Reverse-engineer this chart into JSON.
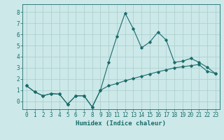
{
  "xlabel": "Humidex (Indice chaleur)",
  "background_color": "#cce8e8",
  "grid_color": "#aacccc",
  "line_color": "#1a6b6b",
  "xlim": [
    -0.5,
    23.5
  ],
  "ylim": [
    -0.7,
    8.7
  ],
  "xticks": [
    0,
    1,
    2,
    3,
    4,
    5,
    6,
    7,
    8,
    9,
    10,
    11,
    12,
    13,
    14,
    15,
    16,
    17,
    18,
    19,
    20,
    21,
    22,
    23
  ],
  "yticks": [
    0,
    1,
    2,
    3,
    4,
    5,
    6,
    7,
    8
  ],
  "line1_x": [
    0,
    1,
    2,
    3,
    4,
    5,
    6,
    7,
    8,
    9,
    10,
    11,
    12,
    13,
    14,
    15,
    16,
    17,
    18,
    19,
    20,
    21,
    22,
    23
  ],
  "line1_y": [
    1.4,
    0.85,
    0.5,
    0.7,
    0.65,
    -0.25,
    0.5,
    0.5,
    -0.5,
    1.0,
    3.5,
    5.8,
    7.9,
    6.5,
    4.8,
    5.3,
    6.2,
    5.5,
    3.5,
    3.6,
    3.85,
    3.5,
    3.05,
    2.5
  ],
  "line2_x": [
    0,
    1,
    2,
    3,
    4,
    5,
    6,
    7,
    8,
    9,
    10,
    11,
    12,
    13,
    14,
    15,
    16,
    17,
    18,
    19,
    20,
    21,
    22,
    23
  ],
  "line2_y": [
    1.4,
    0.85,
    0.5,
    0.7,
    0.65,
    -0.25,
    0.5,
    0.5,
    -0.5,
    1.0,
    1.4,
    1.6,
    1.85,
    2.05,
    2.25,
    2.45,
    2.65,
    2.82,
    3.0,
    3.1,
    3.2,
    3.3,
    2.7,
    2.5
  ],
  "figsize": [
    3.2,
    2.0
  ],
  "dpi": 100,
  "tick_fontsize": 5.5,
  "xlabel_fontsize": 6.5
}
